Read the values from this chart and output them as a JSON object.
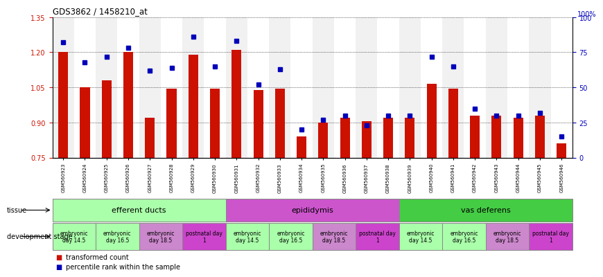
{
  "title": "GDS3862 / 1458210_at",
  "samples": [
    "GSM560923",
    "GSM560924",
    "GSM560925",
    "GSM560926",
    "GSM560927",
    "GSM560928",
    "GSM560929",
    "GSM560930",
    "GSM560931",
    "GSM560932",
    "GSM560933",
    "GSM560934",
    "GSM560935",
    "GSM560936",
    "GSM560937",
    "GSM560938",
    "GSM560939",
    "GSM560940",
    "GSM560941",
    "GSM560942",
    "GSM560943",
    "GSM560944",
    "GSM560945",
    "GSM560946"
  ],
  "bar_values": [
    1.2,
    1.05,
    1.08,
    1.2,
    0.92,
    1.045,
    1.19,
    1.046,
    1.21,
    1.04,
    1.045,
    0.84,
    0.9,
    0.92,
    0.905,
    0.92,
    0.92,
    1.065,
    1.045,
    0.93,
    0.93,
    0.92,
    0.93,
    0.81
  ],
  "percentile_values": [
    82,
    68,
    72,
    78,
    62,
    64,
    86,
    65,
    83,
    52,
    63,
    20,
    27,
    30,
    23,
    30,
    30,
    72,
    65,
    35,
    30,
    30,
    32,
    15
  ],
  "ylim_left": [
    0.75,
    1.35
  ],
  "ylim_right": [
    0,
    100
  ],
  "yticks_left": [
    0.75,
    0.9,
    1.05,
    1.2,
    1.35
  ],
  "yticks_right": [
    0,
    25,
    50,
    75,
    100
  ],
  "bar_color": "#cc1100",
  "dot_color": "#0000bb",
  "tissues": [
    {
      "label": "efferent ducts",
      "start": 0,
      "end": 7,
      "color": "#aaffaa"
    },
    {
      "label": "epididymis",
      "start": 8,
      "end": 15,
      "color": "#cc55cc"
    },
    {
      "label": "vas deferens",
      "start": 16,
      "end": 23,
      "color": "#44cc44"
    }
  ],
  "dev_stages": [
    {
      "label": "embryonic\nday 14.5",
      "start": 0,
      "end": 1,
      "color": "#aaffaa"
    },
    {
      "label": "embryonic\nday 16.5",
      "start": 2,
      "end": 3,
      "color": "#aaffaa"
    },
    {
      "label": "embryonic\nday 18.5",
      "start": 4,
      "end": 5,
      "color": "#cc88cc"
    },
    {
      "label": "postnatal day\n1",
      "start": 6,
      "end": 7,
      "color": "#cc44cc"
    },
    {
      "label": "embryonic\nday 14.5",
      "start": 8,
      "end": 9,
      "color": "#aaffaa"
    },
    {
      "label": "embryonic\nday 16.5",
      "start": 10,
      "end": 11,
      "color": "#aaffaa"
    },
    {
      "label": "embryonic\nday 18.5",
      "start": 12,
      "end": 13,
      "color": "#cc88cc"
    },
    {
      "label": "postnatal day\n1",
      "start": 14,
      "end": 15,
      "color": "#cc44cc"
    },
    {
      "label": "embryonic\nday 14.5",
      "start": 16,
      "end": 17,
      "color": "#aaffaa"
    },
    {
      "label": "embryonic\nday 16.5",
      "start": 18,
      "end": 19,
      "color": "#aaffaa"
    },
    {
      "label": "embryonic\nday 18.5",
      "start": 20,
      "end": 21,
      "color": "#cc88cc"
    },
    {
      "label": "postnatal day\n1",
      "start": 22,
      "end": 23,
      "color": "#cc44cc"
    }
  ],
  "legend": [
    {
      "label": "transformed count",
      "color": "#cc1100"
    },
    {
      "label": "percentile rank within the sample",
      "color": "#0000bb"
    }
  ]
}
